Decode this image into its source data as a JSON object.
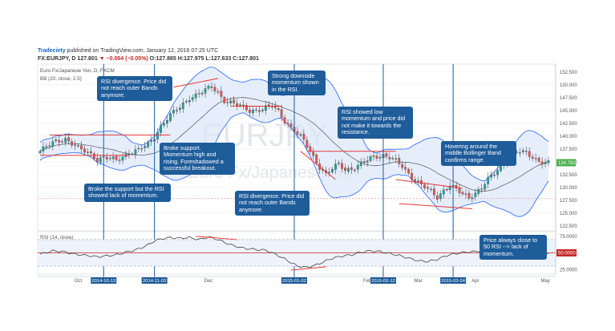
{
  "header": {
    "publisher": "Tradeciety",
    "published_text": "published on TradingView.com, January 12, 2016 07:25 UTC",
    "symbol": "FX:EURJPY, D",
    "last": "127.801",
    "change": "▼ −0.064 (−0.05%)",
    "o": "O:127.865",
    "h": "H:127.975",
    "l": "L:127.633",
    "c": "C:127.801"
  },
  "legend": {
    "instrument": "Euro Fx/Japanese Yen, D, FXCM",
    "bb": "BB (20, close, 2.5)",
    "rsi": "RSI (14, close)"
  },
  "watermark": {
    "big": "EURJPY",
    "small": "Euro Fx/Japanese Yen"
  },
  "callouts": {
    "c1": "RSI divergence. Price did not reach outer Bands anymore.",
    "c2": "Broke support. Momentum high and rising. Foreshadowed a successful breakout.",
    "c3": "Broke the support but the RSI showed lack of momentum.",
    "c4": "Strong downside momentum shown in the RSI.",
    "c5": "RSI divergence. Price did not reach outer Bands anymore.",
    "c6": "RSI showed low momentum and price did not make it towards the resistance.",
    "c7": "Hovering around the middle Bollinger Band confirms range.",
    "c8": "Price always close to 50 RSI --> lack of momentum."
  },
  "colors": {
    "up": "#26a69a",
    "down": "#ef5350",
    "band": "#2962ff",
    "band_fill": "#dbe7fb",
    "middle": "#555555",
    "callout": "#1e5c9a",
    "vline": "#1e5c9a",
    "support": "#e53935",
    "price_tag": "#4caf50",
    "rsi_tag": "#c62828"
  },
  "chart_data": {
    "type": "candlestick",
    "price_axis": {
      "range": [
        121.5,
        154.0
      ],
      "ticks": [
        "122.500",
        "125.000",
        "127.500",
        "130.000",
        "132.500",
        "135.000",
        "137.500",
        "140.000",
        "142.500",
        "145.000",
        "147.500",
        "150.000",
        "152.500"
      ]
    },
    "last_price_label": "134.782",
    "rsi_axis": {
      "range": [
        18,
        82
      ],
      "ticks": [
        "25.0000",
        "50.0000",
        "75.0000"
      ],
      "current_label": "50.0000"
    },
    "x_labels": [
      {
        "t": 12,
        "label": "Oct"
      },
      {
        "t": 53,
        "label": "Dec"
      },
      {
        "t": 103,
        "label": "Feb"
      },
      {
        "t": 119,
        "label": "Mar"
      },
      {
        "t": 137,
        "label": "Apr"
      },
      {
        "t": 159,
        "label": "May"
      }
    ],
    "date_markers": [
      {
        "t": 20,
        "label": "2014-10-13"
      },
      {
        "t": 36,
        "label": "2014-11-03"
      },
      {
        "t": 80,
        "label": "2015-01-02"
      },
      {
        "t": 108,
        "label": "2015-02-12"
      },
      {
        "t": 130,
        "label": "2015-03-24"
      }
    ],
    "price_keys": [
      [
        0,
        137.0
      ],
      [
        5,
        139.0
      ],
      [
        8,
        139.5
      ],
      [
        12,
        137.5
      ],
      [
        16,
        136.5
      ],
      [
        18,
        135.5
      ],
      [
        20,
        135.8
      ],
      [
        24,
        135.2
      ],
      [
        28,
        136.8
      ],
      [
        31,
        137.2
      ],
      [
        34,
        138.3
      ],
      [
        36,
        139.8
      ],
      [
        38,
        142.0
      ],
      [
        41,
        144.0
      ],
      [
        44,
        145.5
      ],
      [
        47,
        147.5
      ],
      [
        51,
        148.5
      ],
      [
        54,
        149.5
      ],
      [
        56,
        148.5
      ],
      [
        58,
        147.0
      ],
      [
        62,
        146.0
      ],
      [
        66,
        145.0
      ],
      [
        70,
        145.2
      ],
      [
        73,
        145.8
      ],
      [
        75,
        144.8
      ],
      [
        77,
        143.0
      ],
      [
        80,
        141.0
      ],
      [
        83,
        139.0
      ],
      [
        86,
        136.0
      ],
      [
        88,
        134.0
      ],
      [
        90,
        132.5
      ],
      [
        92,
        133.5
      ],
      [
        94,
        134.5
      ],
      [
        96,
        133.5
      ],
      [
        99,
        133.8
      ],
      [
        102,
        134.8
      ],
      [
        105,
        136.0
      ],
      [
        108,
        136.3
      ],
      [
        110,
        135.8
      ],
      [
        112,
        135.0
      ],
      [
        114,
        134.0
      ],
      [
        117,
        132.0
      ],
      [
        120,
        130.5
      ],
      [
        123,
        129.0
      ],
      [
        125,
        128.0
      ],
      [
        127,
        129.5
      ],
      [
        129,
        130.5
      ],
      [
        131,
        129.5
      ],
      [
        133,
        128.5
      ],
      [
        135,
        128.0
      ],
      [
        137,
        129.0
      ],
      [
        139,
        130.0
      ],
      [
        141,
        131.5
      ],
      [
        143,
        132.5
      ],
      [
        145,
        134.0
      ],
      [
        147,
        135.5
      ],
      [
        150,
        137.0
      ],
      [
        153,
        136.5
      ],
      [
        156,
        135.5
      ],
      [
        158,
        135.0
      ],
      [
        160,
        134.8
      ]
    ],
    "rsi_keys": [
      [
        0,
        48
      ],
      [
        4,
        53
      ],
      [
        7,
        52
      ],
      [
        11,
        48
      ],
      [
        15,
        46
      ],
      [
        18,
        44
      ],
      [
        20,
        45
      ],
      [
        24,
        47
      ],
      [
        28,
        52
      ],
      [
        31,
        56
      ],
      [
        34,
        62
      ],
      [
        36,
        68
      ],
      [
        38,
        71
      ],
      [
        41,
        73
      ],
      [
        44,
        72
      ],
      [
        47,
        73
      ],
      [
        50,
        70
      ],
      [
        53,
        74
      ],
      [
        56,
        70
      ],
      [
        60,
        62
      ],
      [
        64,
        57
      ],
      [
        68,
        55
      ],
      [
        71,
        54
      ],
      [
        75,
        46
      ],
      [
        78,
        38
      ],
      [
        81,
        30
      ],
      [
        84,
        28
      ],
      [
        87,
        32
      ],
      [
        90,
        38
      ],
      [
        92,
        42
      ],
      [
        95,
        45
      ],
      [
        98,
        47
      ],
      [
        101,
        51
      ],
      [
        104,
        53
      ],
      [
        107,
        52
      ],
      [
        110,
        49
      ],
      [
        113,
        46
      ],
      [
        116,
        42
      ],
      [
        119,
        38
      ],
      [
        122,
        37
      ],
      [
        125,
        40
      ],
      [
        128,
        46
      ],
      [
        131,
        49
      ],
      [
        134,
        51
      ],
      [
        137,
        52
      ],
      [
        140,
        54
      ],
      [
        143,
        57
      ],
      [
        146,
        58
      ],
      [
        149,
        56
      ],
      [
        152,
        53
      ],
      [
        155,
        50
      ],
      [
        158,
        49
      ],
      [
        160,
        48
      ]
    ],
    "support_levels": [
      {
        "from": 0,
        "to": 28,
        "price": 136.2
      },
      {
        "from": 3,
        "to": 41,
        "price": 140.2
      },
      {
        "from": 84,
        "to": 112,
        "price": 137.0
      },
      {
        "from": 60,
        "to": 76,
        "price": 145.8
      }
    ],
    "resistance_trend": [
      {
        "from": [
          42,
          149.5
        ],
        "to": [
          56,
          151.2
        ]
      },
      {
        "from": [
          112,
          131.5
        ],
        "to": [
          133,
          129.8
        ]
      },
      {
        "from": [
          113,
          126.8
        ],
        "to": [
          136,
          125.8
        ]
      },
      {
        "from": [
          82,
          137.0
        ],
        "to": [
          93,
          131.5
        ]
      }
    ],
    "rsi_divergence": [
      {
        "from": [
          49,
          75
        ],
        "to": [
          62,
          70
        ]
      },
      {
        "from": [
          79,
          24
        ],
        "to": [
          90,
          29
        ]
      }
    ]
  }
}
